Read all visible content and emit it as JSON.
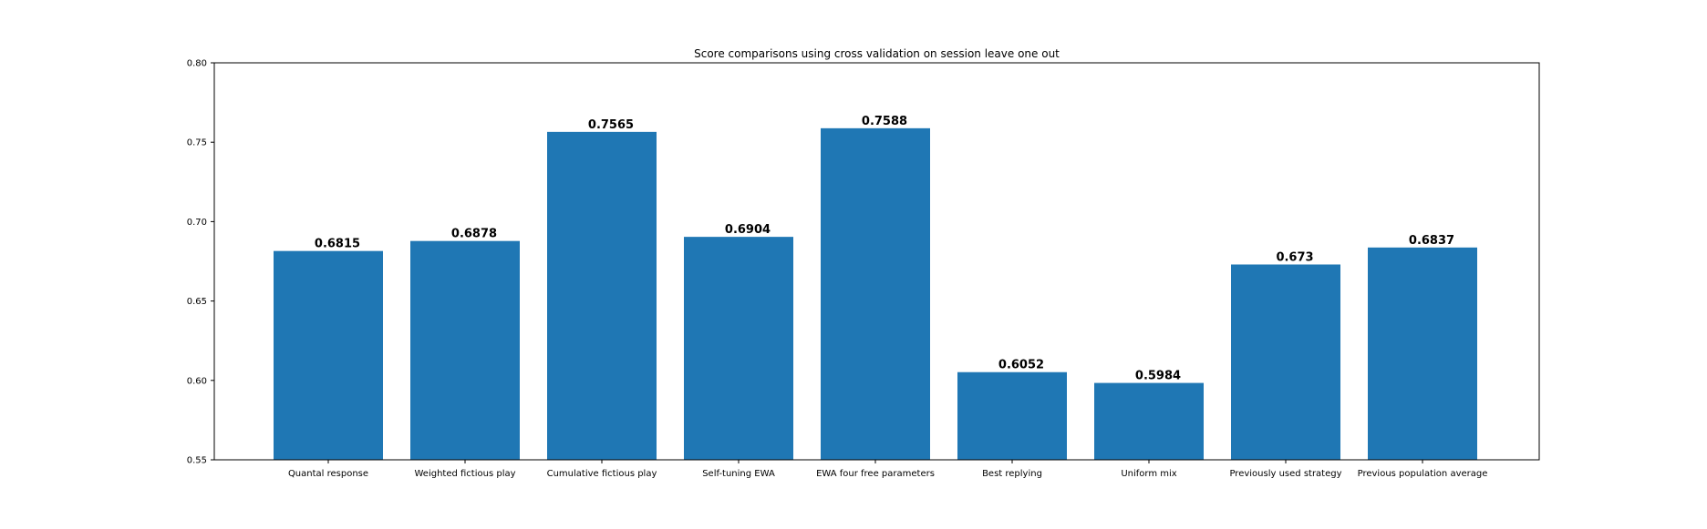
{
  "chart_data": {
    "type": "bar",
    "title": "Score comparisons using cross validation on session leave one out",
    "xlabel": "",
    "ylabel": "",
    "ylim": [
      0.55,
      0.8
    ],
    "yticks": [
      "0.55",
      "0.60",
      "0.65",
      "0.70",
      "0.75",
      "0.80"
    ],
    "grid": false,
    "bar_color": "#1f77b4",
    "categories": [
      "Quantal response",
      "Weighted fictious play",
      "Cumulative fictious play",
      "Self-tuning EWA",
      "EWA four free parameters",
      "Best replying",
      "Uniform mix",
      "Previously used strategy",
      "Previous population average"
    ],
    "values": [
      0.6815,
      0.6878,
      0.7565,
      0.6904,
      0.7588,
      0.6052,
      0.5984,
      0.673,
      0.6837
    ],
    "value_labels": [
      "0.6815",
      "0.6878",
      "0.7565",
      "0.6904",
      "0.7588",
      "0.6052",
      "0.5984",
      "0.673",
      "0.6837"
    ]
  }
}
